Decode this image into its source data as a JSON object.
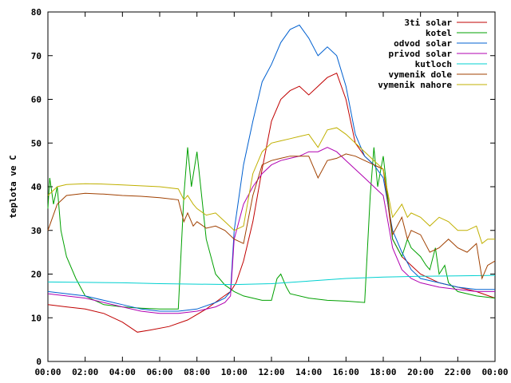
{
  "chart_data": {
    "type": "line",
    "title": "",
    "xlabel": "",
    "ylabel": "teplota ve C",
    "xlim": [
      0,
      24
    ],
    "ylim": [
      0,
      80
    ],
    "grid": false,
    "legend_position": "top-right",
    "x_ticks": [
      "00:00",
      "02:00",
      "04:00",
      "06:00",
      "08:00",
      "10:00",
      "12:00",
      "14:00",
      "16:00",
      "18:00",
      "20:00",
      "22:00",
      "00:00"
    ],
    "y_ticks": [
      0,
      10,
      20,
      30,
      40,
      50,
      60,
      70,
      80
    ],
    "series": [
      {
        "name": "3ti solar",
        "color": "#c00000",
        "x": [
          0,
          1,
          2,
          3,
          4,
          4.8,
          5.5,
          6.5,
          7.5,
          8.5,
          9.3,
          9.8,
          10.1,
          10.5,
          11,
          11.5,
          12,
          12.5,
          13,
          13.5,
          14,
          14.5,
          15,
          15.5,
          16,
          16.5,
          17,
          17.5,
          18,
          18.5,
          19,
          19.5,
          20,
          21,
          22,
          23,
          24
        ],
        "y": [
          13,
          12.5,
          12,
          11,
          9,
          6.7,
          7.2,
          8,
          9.5,
          12,
          14.5,
          16,
          18,
          23,
          32,
          44,
          55,
          60,
          62,
          63,
          61,
          63,
          65,
          66,
          60,
          50,
          47,
          45,
          44,
          28,
          24,
          22,
          20,
          18,
          17,
          16,
          14.5
        ]
      },
      {
        "name": "kotel",
        "color": "#00a000",
        "x": [
          0,
          0.1,
          0.3,
          0.5,
          0.7,
          1,
          1.5,
          2,
          3,
          4,
          5,
          6,
          7,
          7.3,
          7.5,
          7.7,
          8,
          8.5,
          9,
          9.5,
          10,
          10.5,
          11,
          11.5,
          12,
          12.3,
          12.5,
          12.8,
          13,
          14,
          15,
          16,
          17,
          17.3,
          17.5,
          17.7,
          18,
          18.5,
          19,
          19.3,
          19.5,
          20,
          20.3,
          20.5,
          20.8,
          21,
          21.3,
          21.5,
          22,
          23,
          24
        ],
        "y": [
          35,
          42,
          36,
          40,
          30,
          24,
          19,
          15,
          13,
          12.5,
          12.2,
          12,
          12,
          38,
          49,
          40,
          48,
          28,
          20,
          17.5,
          16,
          15,
          14.5,
          14,
          14,
          19,
          20,
          17,
          15.5,
          14.5,
          14,
          13.8,
          13.5,
          38,
          49,
          40,
          47,
          28,
          24,
          28,
          26,
          24,
          22,
          21,
          26,
          20,
          22,
          18,
          16,
          15,
          14.5
        ]
      },
      {
        "name": "odvod solar",
        "color": "#0060d0",
        "x": [
          0,
          1,
          2,
          3,
          4,
          5,
          6,
          7,
          8,
          9,
          9.5,
          9.8,
          10,
          10.5,
          11,
          11.5,
          12,
          12.5,
          13,
          13.5,
          14,
          14.5,
          15,
          15.5,
          16,
          16.5,
          17,
          17.5,
          18,
          18.5,
          19,
          19.5,
          20,
          21,
          22,
          23,
          24
        ],
        "y": [
          16,
          15.5,
          15,
          14,
          13,
          12,
          11.5,
          11.5,
          12,
          13.5,
          14.5,
          16,
          30,
          45,
          55,
          64,
          68,
          73,
          76,
          77,
          74,
          70,
          72,
          70,
          63,
          52,
          47,
          45,
          42,
          30,
          25,
          21,
          19,
          18,
          17,
          16.5,
          16.5
        ]
      },
      {
        "name": "privod solar",
        "color": "#b000b0",
        "x": [
          0,
          1,
          2,
          3,
          4,
          5,
          6,
          7,
          8,
          9,
          9.5,
          9.8,
          10,
          10.5,
          11,
          11.5,
          12,
          12.5,
          13,
          13.5,
          14,
          14.5,
          15,
          15.5,
          16,
          16.5,
          17,
          17.5,
          18,
          18.5,
          19,
          19.5,
          20,
          21,
          22,
          23,
          24
        ],
        "y": [
          15.5,
          15,
          14.5,
          13.5,
          12.5,
          11.5,
          11,
          11,
          11.5,
          12.5,
          13.5,
          15,
          28,
          36,
          40,
          43,
          45,
          46,
          46.5,
          47,
          48,
          48,
          49,
          48,
          46,
          44,
          42,
          40,
          38,
          26,
          21,
          19,
          18,
          17,
          16.5,
          16,
          16
        ]
      },
      {
        "name": "kutloch",
        "color": "#00d0d0",
        "x": [
          0,
          2,
          4,
          6,
          8,
          10,
          12,
          14,
          16,
          18,
          20,
          22,
          24
        ],
        "y": [
          18.2,
          18.1,
          18,
          17.8,
          17.7,
          17.6,
          17.8,
          18.4,
          19,
          19.3,
          19.5,
          19.6,
          19.7
        ]
      },
      {
        "name": "vymenik dole",
        "color": "#a04000",
        "x": [
          0,
          0.5,
          1,
          2,
          3,
          4,
          5,
          6,
          7,
          7.3,
          7.5,
          7.8,
          8,
          8.5,
          9,
          9.5,
          10,
          10.5,
          11,
          11.5,
          12,
          12.5,
          13,
          13.5,
          14,
          14.5,
          15,
          15.5,
          16,
          16.5,
          17,
          17.5,
          18,
          18.5,
          19,
          19.3,
          19.5,
          20,
          20.5,
          21,
          21.5,
          22,
          22.5,
          23,
          23.3,
          23.6,
          24
        ],
        "y": [
          30,
          36,
          38,
          38.5,
          38.3,
          38,
          37.8,
          37.5,
          37,
          32,
          34,
          31,
          32,
          30.5,
          31,
          30,
          28,
          27,
          38,
          45,
          46,
          46.5,
          47,
          47,
          47,
          42,
          46,
          46.5,
          47.5,
          47,
          46,
          45,
          44,
          29,
          33,
          28,
          30,
          29,
          25,
          26,
          28,
          26,
          25,
          27,
          19,
          22,
          23
        ]
      },
      {
        "name": "vymenik nahore",
        "color": "#c0b000",
        "x": [
          0,
          0.5,
          1,
          2,
          3,
          4,
          5,
          6,
          7,
          7.3,
          7.5,
          7.8,
          8,
          8.5,
          9,
          9.5,
          10,
          10.5,
          11,
          11.5,
          12,
          12.5,
          13,
          13.5,
          14,
          14.5,
          15,
          15.5,
          16,
          16.5,
          17,
          17.5,
          18,
          18.5,
          19,
          19.3,
          19.5,
          20,
          20.5,
          21,
          21.5,
          22,
          22.5,
          23,
          23.3,
          23.6,
          24
        ],
        "y": [
          38,
          40,
          40.5,
          40.7,
          40.6,
          40.4,
          40.2,
          40,
          39.5,
          37,
          38,
          36,
          35,
          33.5,
          34,
          32,
          30,
          31,
          43,
          48,
          50,
          50.5,
          51,
          51.5,
          52,
          49,
          53,
          53.5,
          52,
          50,
          48,
          46,
          44,
          33,
          36,
          33,
          34,
          33,
          31,
          33,
          32,
          30,
          30,
          31,
          27,
          28,
          28
        ]
      }
    ]
  }
}
